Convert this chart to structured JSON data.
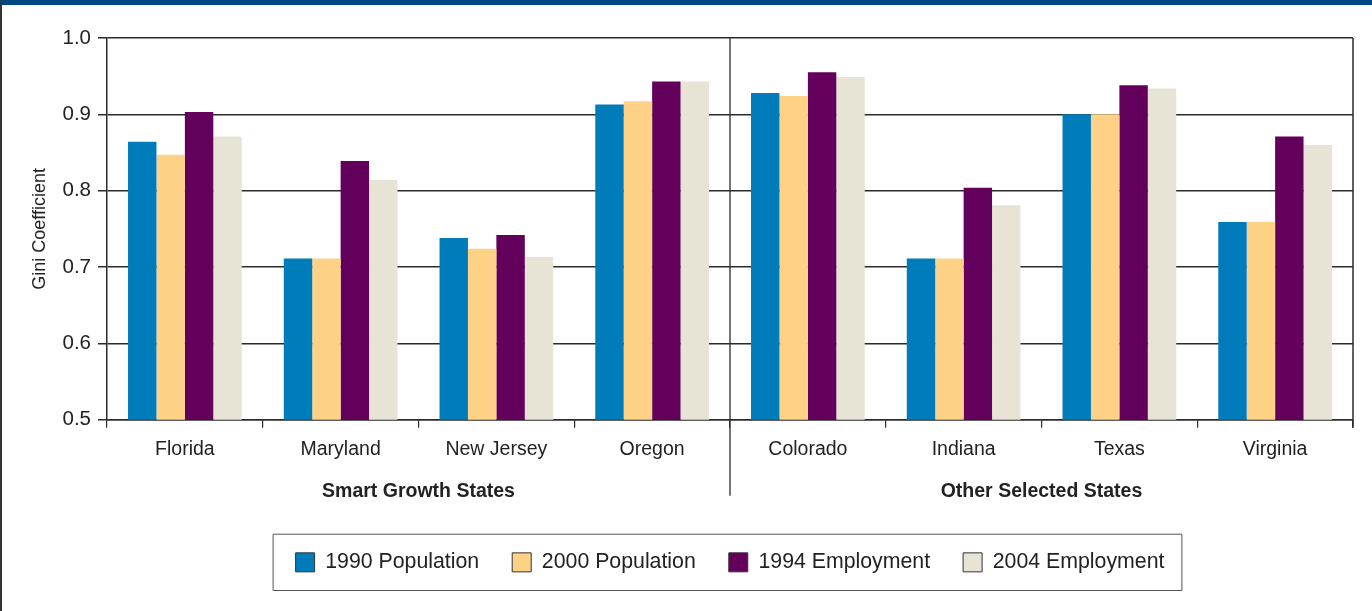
{
  "chart_data": {
    "type": "bar",
    "categories": [
      "Florida",
      "Maryland",
      "New Jersey",
      "Oregon",
      "Colorado",
      "Indiana",
      "Texas",
      "Virginia"
    ],
    "series": [
      {
        "name": "1990 Population",
        "color": "#007cba",
        "values": [
          0.864,
          0.711,
          0.738,
          0.913,
          0.928,
          0.711,
          0.9,
          0.759
        ]
      },
      {
        "name": "2000 Population",
        "color": "#fdd287",
        "values": [
          0.847,
          0.711,
          0.724,
          0.917,
          0.924,
          0.711,
          0.9,
          0.759
        ]
      },
      {
        "name": "1994 Employment",
        "color": "#63005b",
        "values": [
          0.903,
          0.839,
          0.742,
          0.943,
          0.955,
          0.804,
          0.938,
          0.871
        ]
      },
      {
        "name": "2004 Employment",
        "color": "#e7e4d5",
        "values": [
          0.871,
          0.814,
          0.713,
          0.943,
          0.949,
          0.781,
          0.934,
          0.86
        ]
      }
    ],
    "ylabel": "Gini Coefficient",
    "ylim": [
      0.5,
      1
    ],
    "yticks": [
      0.5,
      0.6,
      0.7,
      0.8,
      0.9,
      {
        "value": 1,
        "label": "1.0"
      }
    ],
    "grid": "y",
    "legend": "bottom",
    "annotations": [
      "Smart Growth States",
      "Other Selected States"
    ]
  }
}
